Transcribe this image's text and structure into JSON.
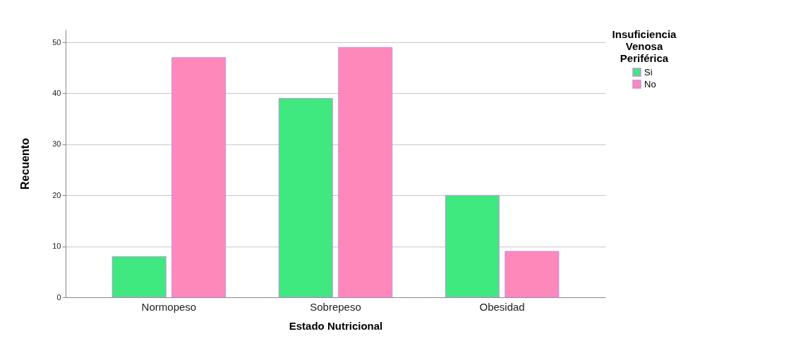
{
  "chart_data": {
    "type": "bar",
    "xlabel": "Estado Nutricional",
    "ylabel": "Recuento",
    "legend_title": "Insuficiencia Venosa Periférica",
    "categories": [
      "Normopeso",
      "Sobrepeso",
      "Obesidad"
    ],
    "series": [
      {
        "name": "Si",
        "color": "#40e880",
        "values": [
          8,
          39,
          20
        ]
      },
      {
        "name": "No",
        "color": "#ff88bb",
        "values": [
          47,
          49,
          9
        ]
      }
    ],
    "ylim": [
      0,
      52.5
    ],
    "yticks": [
      0,
      10,
      20,
      30,
      40,
      50
    ],
    "grid": "y",
    "legend": "top right"
  }
}
